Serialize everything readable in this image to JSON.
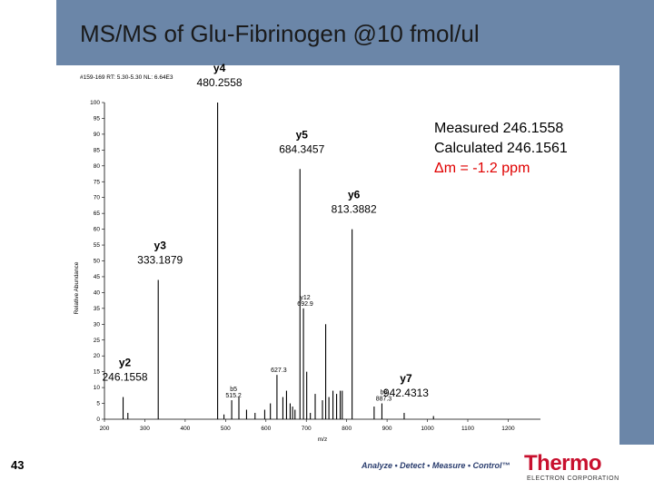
{
  "slide": {
    "title": "MS/MS of Glu-Fibrinogen @10 fmol/ul",
    "slide_number": "43",
    "tagline": "Analyze • Detect • Measure • Control™",
    "logo_text": "Thermo",
    "logo_subtext": "ELECTRON CORPORATION",
    "header_color": "#6b86a8",
    "logo_color": "#c8102e"
  },
  "chart_data": {
    "type": "bar",
    "scan_header": "#159-169 RT: 5.30-5.30 NL: 6.64E3",
    "xlabel": "m/z",
    "ylabel": "Relative Abundance",
    "xlim": [
      200,
      1280
    ],
    "ylim": [
      0,
      100
    ],
    "x_ticks": [
      200,
      300,
      400,
      500,
      600,
      700,
      800,
      900,
      1000,
      1100,
      1200
    ],
    "y_ticks": [
      0,
      5,
      10,
      15,
      20,
      25,
      30,
      35,
      40,
      45,
      50,
      55,
      60,
      65,
      70,
      75,
      80,
      85,
      90,
      95,
      100
    ],
    "peaks": [
      {
        "mz": 246.2,
        "intensity": 7
      },
      {
        "mz": 258,
        "intensity": 2
      },
      {
        "mz": 333.2,
        "intensity": 44
      },
      {
        "mz": 480.3,
        "intensity": 100
      },
      {
        "mz": 496,
        "intensity": 1.5
      },
      {
        "mz": 515.2,
        "intensity": 6
      },
      {
        "mz": 533,
        "intensity": 7
      },
      {
        "mz": 552,
        "intensity": 3
      },
      {
        "mz": 573,
        "intensity": 2
      },
      {
        "mz": 597,
        "intensity": 3
      },
      {
        "mz": 611,
        "intensity": 5
      },
      {
        "mz": 627.3,
        "intensity": 14
      },
      {
        "mz": 642,
        "intensity": 7
      },
      {
        "mz": 651,
        "intensity": 9
      },
      {
        "mz": 660,
        "intensity": 5
      },
      {
        "mz": 666,
        "intensity": 4
      },
      {
        "mz": 672,
        "intensity": 3
      },
      {
        "mz": 684.3,
        "intensity": 79
      },
      {
        "mz": 692.9,
        "intensity": 35
      },
      {
        "mz": 701,
        "intensity": 15
      },
      {
        "mz": 710,
        "intensity": 2
      },
      {
        "mz": 722,
        "intensity": 8
      },
      {
        "mz": 740,
        "intensity": 6
      },
      {
        "mz": 748,
        "intensity": 30
      },
      {
        "mz": 756,
        "intensity": 7
      },
      {
        "mz": 766,
        "intensity": 9
      },
      {
        "mz": 775,
        "intensity": 8
      },
      {
        "mz": 784,
        "intensity": 9
      },
      {
        "mz": 789,
        "intensity": 9
      },
      {
        "mz": 813.4,
        "intensity": 60
      },
      {
        "mz": 868,
        "intensity": 4
      },
      {
        "mz": 887.3,
        "intensity": 5
      },
      {
        "mz": 942.4,
        "intensity": 2
      },
      {
        "mz": 1015,
        "intensity": 1
      }
    ],
    "peak_labels": [
      {
        "mz": 627.3,
        "intensity": 14,
        "lines": [
          "627.3"
        ]
      },
      {
        "mz": 692.9,
        "intensity": 35,
        "lines": [
          "y12",
          "692.9"
        ]
      },
      {
        "mz": 515.2,
        "intensity": 6,
        "lines": [
          "b5",
          "515.2"
        ]
      },
      {
        "mz": 887.3,
        "intensity": 5,
        "lines": [
          "b8",
          "887.3"
        ]
      }
    ],
    "annotations": [
      {
        "mz": 480.3,
        "intensity": 100,
        "label": "y4",
        "value": "480.2558"
      },
      {
        "mz": 684.3,
        "intensity": 79,
        "label": "y5",
        "value": "684.3457"
      },
      {
        "mz": 813.4,
        "intensity": 60,
        "label": "y6",
        "value": "813.3882"
      },
      {
        "mz": 333.2,
        "intensity": 44,
        "label": "y3",
        "value": "333.1879"
      },
      {
        "mz": 942.4,
        "intensity": 2,
        "label": "y7",
        "value": "942.4313"
      },
      {
        "mz": 246.2,
        "intensity": 7,
        "label": "y2",
        "value": "246.1558"
      }
    ],
    "measurement": {
      "measured": "Measured 246.1558",
      "calculated": "Calculated 246.1561",
      "delta": "Δm = -1.2 ppm",
      "delta_color": "#e00000"
    }
  }
}
